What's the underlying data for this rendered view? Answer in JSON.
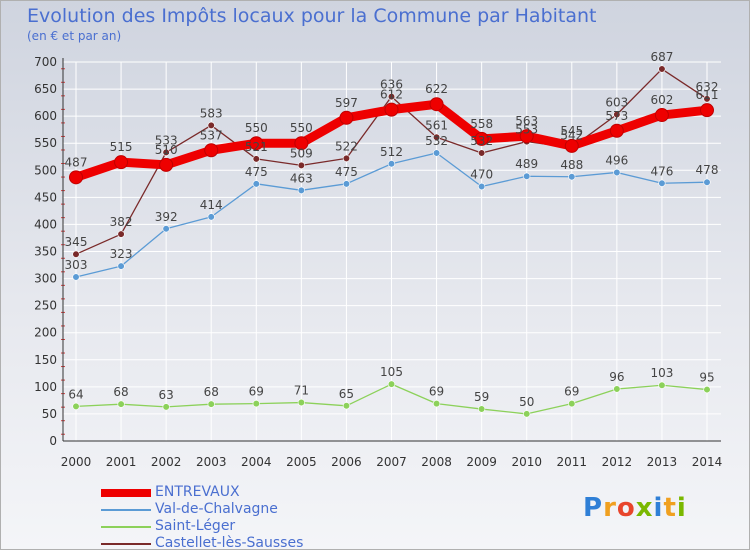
{
  "chart_data": {
    "type": "line",
    "title": "Evolution des Impôts locaux pour la Commune par Habitant",
    "subtitle": "(en € et par an)",
    "x": [
      "2000",
      "2001",
      "2002",
      "2003",
      "2004",
      "2005",
      "2006",
      "2007",
      "2008",
      "2009",
      "2010",
      "2011",
      "2012",
      "2013",
      "2014"
    ],
    "yticks": [
      "0",
      "50",
      "100",
      "150",
      "200",
      "250",
      "300",
      "350",
      "400",
      "450",
      "500",
      "550",
      "600",
      "650",
      "700"
    ],
    "ylim": [
      0,
      700
    ],
    "grid": true,
    "legend_position": "bottom-left",
    "series": [
      {
        "name": "ENTREVAUX",
        "color": "#ee0000",
        "values": [
          487,
          515,
          510,
          537,
          550,
          550,
          597,
          612,
          622,
          558,
          563,
          545,
          573,
          602,
          611
        ]
      },
      {
        "name": "Val-de-Chalvagne",
        "color": "#5b9bd5",
        "values": [
          303,
          323,
          392,
          414,
          475,
          463,
          475,
          512,
          532,
          470,
          489,
          488,
          496,
          476,
          478
        ]
      },
      {
        "name": "Saint-Léger",
        "color": "#8cd15a",
        "values": [
          64,
          68,
          63,
          68,
          69,
          71,
          65,
          105,
          69,
          59,
          50,
          69,
          96,
          103,
          95
        ]
      },
      {
        "name": "Castellet-lès-Sausses",
        "color": "#7a2a2a",
        "values": [
          345,
          382,
          533,
          583,
          521,
          509,
          522,
          636,
          561,
          532,
          553,
          542,
          603,
          687,
          632
        ]
      }
    ]
  },
  "logo": {
    "letters": [
      "P",
      "r",
      "o",
      "x",
      "i",
      "t",
      "i"
    ]
  }
}
